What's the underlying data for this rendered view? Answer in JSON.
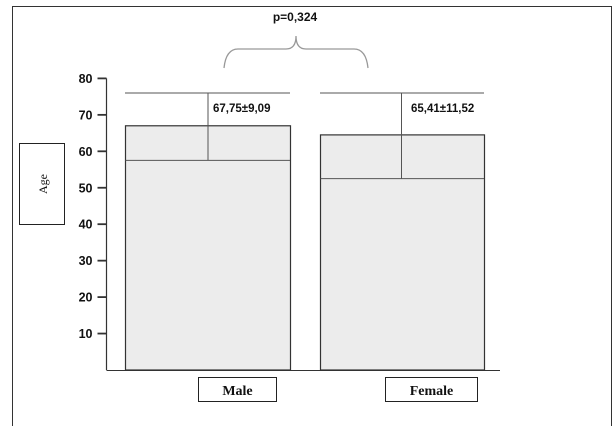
{
  "chart_data": {
    "type": "bar",
    "title": "",
    "ylabel": "Age",
    "xlabel": "",
    "ylim": [
      0,
      80
    ],
    "yticks": [
      10,
      20,
      30,
      40,
      50,
      60,
      70,
      80
    ],
    "categories": [
      "Male",
      "Female"
    ],
    "values": [
      67,
      64.5
    ],
    "error_upper": [
      76,
      76
    ],
    "error_lower": [
      57.5,
      52.5
    ],
    "data_labels": [
      "67,75±9,09",
      "65,41±11,52"
    ],
    "annotation": "p=0,324",
    "grid": false,
    "legend": "none",
    "bar_fill": "#ececec",
    "bar_stroke": "#333333",
    "axis_color": "#333333",
    "bracket_color": "#999999"
  }
}
